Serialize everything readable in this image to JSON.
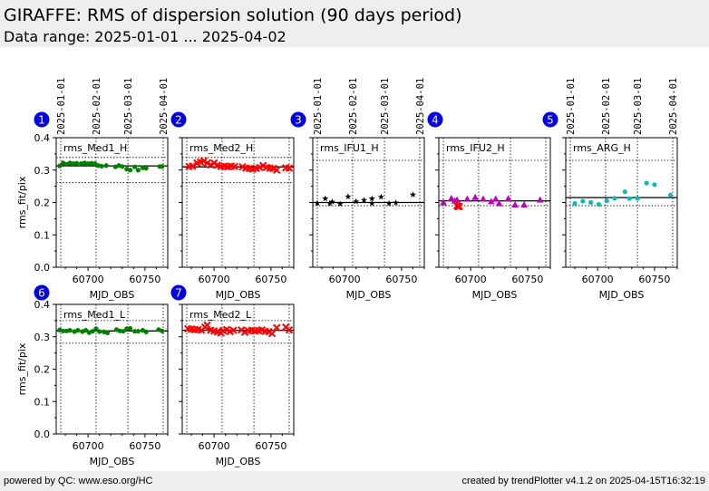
{
  "header": {
    "title": "GIRAFFE: RMS of dispersion solution (90 days period)",
    "subtitle": "Data range: 2025-01-01 ... 2025-04-02"
  },
  "footer": {
    "left": "powered by QC: www.eso.org/HC",
    "right": "created by trendPlotter v4.1.2 on 2025-04-15T16:32:19"
  },
  "chart_data": {
    "type": "scatter",
    "xlabel": "MJD_OBS",
    "ylabel": "rms_fit/pix",
    "xlim": [
      60672,
      60770
    ],
    "ylim": [
      0,
      0.4
    ],
    "xticks": [
      60700,
      60750
    ],
    "yticks": [
      0.0,
      0.1,
      0.2,
      0.3,
      0.4
    ],
    "date_ticks": [
      {
        "label": "2025-01-01",
        "mjd": 60676
      },
      {
        "label": "2025-02-01",
        "mjd": 60707
      },
      {
        "label": "2025-03-01",
        "mjd": 60735
      },
      {
        "label": "2025-04-01",
        "mjd": 60766
      }
    ],
    "grid": "dotted date lines",
    "panels": [
      {
        "id": "1",
        "name": "rms_Med1_H",
        "color": "#008000",
        "marker": "dot",
        "mean": 0.313,
        "limits": [
          0.261,
          0.339
        ],
        "x": [
          60675,
          60678,
          60681,
          60684,
          60687,
          60690,
          60694,
          60697,
          60700,
          60703,
          60706,
          60709,
          60712,
          60716,
          60724,
          60727,
          60730,
          60734,
          60737,
          60741,
          60744,
          60748,
          60751,
          60763,
          60765
        ],
        "y": [
          0.313,
          0.322,
          0.318,
          0.322,
          0.32,
          0.321,
          0.32,
          0.322,
          0.32,
          0.321,
          0.32,
          0.314,
          0.312,
          0.314,
          0.31,
          0.314,
          0.311,
          0.303,
          0.3,
          0.31,
          0.3,
          0.307,
          0.306,
          0.311,
          0.311
        ]
      },
      {
        "id": "2",
        "name": "rms_Med2_H",
        "color": "#ff0000",
        "marker": "x",
        "mean": 0.31,
        "limits": [
          0.261,
          0.339
        ],
        "x": [
          60678,
          60681,
          60685,
          60688,
          60691,
          60694,
          60697,
          60700,
          60703,
          60706,
          60709,
          60712,
          60715,
          60718,
          60725,
          60728,
          60731,
          60734,
          60737,
          60740,
          60743,
          60746,
          60749,
          60752,
          60755,
          60763,
          60766
        ],
        "y": [
          0.311,
          0.312,
          0.322,
          0.325,
          0.328,
          0.322,
          0.316,
          0.322,
          0.315,
          0.311,
          0.312,
          0.31,
          0.312,
          0.311,
          0.31,
          0.306,
          0.305,
          0.303,
          0.305,
          0.308,
          0.314,
          0.308,
          0.306,
          0.305,
          0.3,
          0.307,
          0.306
        ]
      },
      {
        "id": "3",
        "name": "rms_IFU1_H",
        "color": "#000000",
        "marker": "star",
        "mean": 0.2,
        "limits": [
          0.19,
          0.33
        ],
        "x": [
          60676,
          60683,
          60687,
          60689,
          60696,
          60703,
          60710,
          60717,
          60724,
          60724,
          60732,
          60739,
          60745,
          60760
        ],
        "y": [
          0.198,
          0.212,
          0.197,
          0.202,
          0.195,
          0.218,
          0.203,
          0.207,
          0.212,
          0.197,
          0.217,
          0.197,
          0.199,
          0.224
        ]
      },
      {
        "id": "4",
        "name": "rms_IFU2_H",
        "color": "#c000c0",
        "marker": "triangle",
        "mean": 0.205,
        "limits": [
          0.19,
          0.33
        ],
        "x": [
          60676,
          60683,
          60686,
          60688,
          60697,
          60704,
          60711,
          60718,
          60722,
          60725,
          60733,
          60739,
          60747,
          60761
        ],
        "y": [
          0.2,
          0.213,
          0.205,
          0.208,
          0.211,
          0.216,
          0.211,
          0.203,
          0.211,
          0.197,
          0.212,
          0.193,
          0.193,
          0.208
        ],
        "outliers": {
          "color": "#ff0000",
          "marker": "x",
          "x": [
            60688,
            60690,
            60689
          ],
          "y": [
            0.19,
            0.188,
            0.187
          ]
        }
      },
      {
        "id": "5",
        "name": "rms_ARG_H",
        "color": "#00bfbf",
        "marker": "dot",
        "mean": 0.215,
        "limits": [
          0.19,
          0.33
        ],
        "x": [
          60680,
          60687,
          60694,
          60701,
          60708,
          60715,
          60724,
          60728,
          60735,
          60743,
          60750,
          60764
        ],
        "y": [
          0.197,
          0.204,
          0.2,
          0.194,
          0.205,
          0.213,
          0.233,
          0.212,
          0.213,
          0.26,
          0.255,
          0.223
        ]
      },
      {
        "id": "6",
        "name": "rms_Med1_L",
        "color": "#008000",
        "marker": "dot",
        "mean": 0.318,
        "limits": [
          0.28,
          0.35
        ],
        "x": [
          60675,
          60678,
          60681,
          60684,
          60688,
          60691,
          60695,
          60698,
          60701,
          60704,
          60707,
          60710,
          60714,
          60717,
          60725,
          60728,
          60731,
          60734,
          60737,
          60741,
          60744,
          60748,
          60751,
          60762,
          60765
        ],
        "y": [
          0.321,
          0.318,
          0.318,
          0.32,
          0.316,
          0.32,
          0.316,
          0.32,
          0.313,
          0.317,
          0.325,
          0.316,
          0.315,
          0.312,
          0.322,
          0.318,
          0.317,
          0.325,
          0.326,
          0.317,
          0.317,
          0.32,
          0.315,
          0.322,
          0.318
        ]
      },
      {
        "id": "7",
        "name": "rms_Med2_L",
        "color": "#ff0000",
        "marker": "x",
        "mean": 0.32,
        "limits": [
          0.28,
          0.35
        ],
        "x": [
          60677,
          60680,
          60683,
          60686,
          60689,
          60692,
          60694,
          60697,
          60700,
          60703,
          60706,
          60708,
          60711,
          60714,
          60717,
          60724,
          60727,
          60730,
          60733,
          60736,
          60739,
          60742,
          60745,
          60748,
          60751,
          60755,
          60763,
          60766
        ],
        "y": [
          0.325,
          0.324,
          0.322,
          0.322,
          0.32,
          0.33,
          0.336,
          0.32,
          0.318,
          0.315,
          0.312,
          0.319,
          0.322,
          0.316,
          0.32,
          0.321,
          0.314,
          0.319,
          0.32,
          0.318,
          0.319,
          0.321,
          0.317,
          0.316,
          0.31,
          0.328,
          0.33,
          0.321
        ]
      }
    ]
  }
}
